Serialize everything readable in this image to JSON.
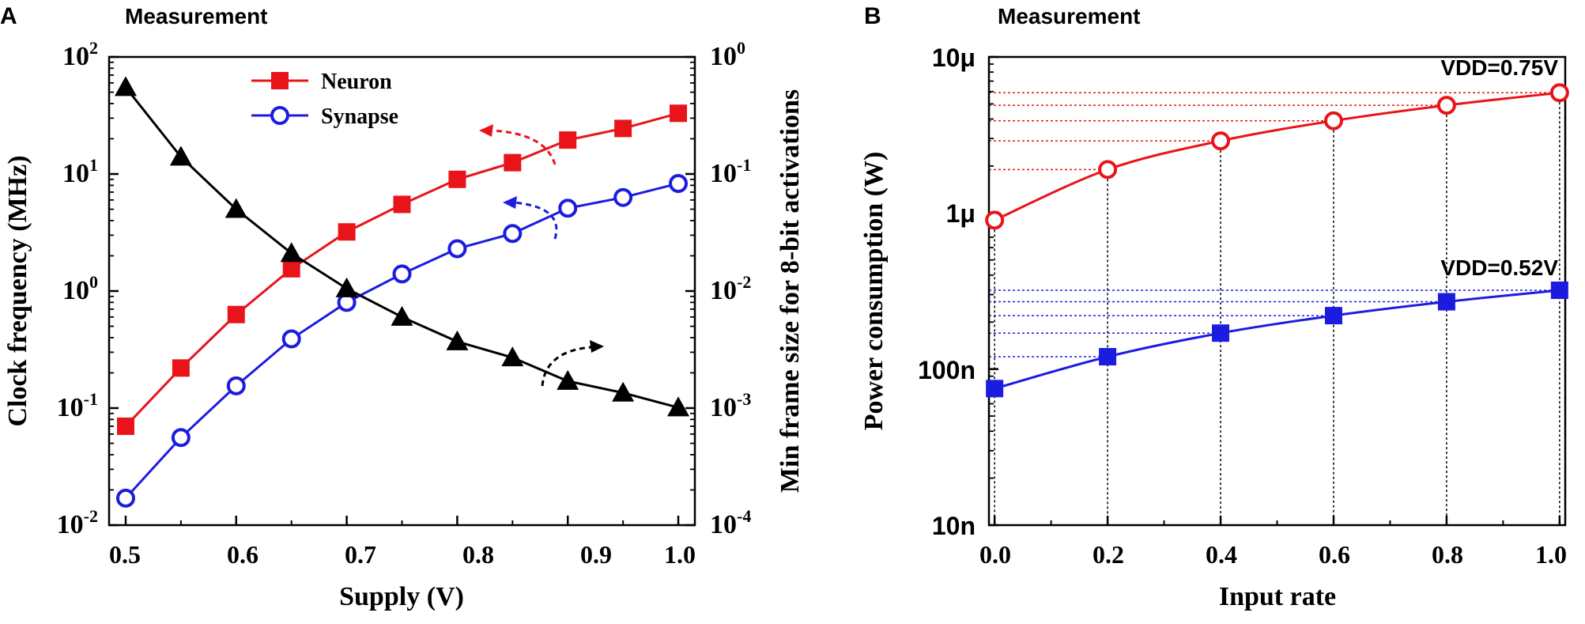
{
  "chart_data": [
    {
      "panel": "A",
      "type": "line",
      "title": "Measurement",
      "xlabel": "Supply (V)",
      "ylabel": "Clock frequency (MHz)",
      "y2label": "Min frame size for 8-bit activations",
      "xlim": [
        0.485,
        1.015
      ],
      "ylim_log10": [
        -2,
        2
      ],
      "y2lim_log10": [
        -4,
        0
      ],
      "y_scale": "log",
      "x_ticks": [
        0.5,
        0.6,
        0.7,
        0.8,
        0.9,
        1.0
      ],
      "x_tick_labels": [
        "0.5",
        "0.6",
        "0.7",
        "0.8",
        "0.9",
        "1.0"
      ],
      "y_tick_bases": [
        "10",
        "10",
        "10",
        "10",
        "10"
      ],
      "y_tick_exps": [
        "-2",
        "-1",
        "0",
        "1",
        "2"
      ],
      "y2_tick_bases": [
        "10",
        "10",
        "10",
        "10",
        "10"
      ],
      "y2_tick_exps": [
        "-4",
        "-3",
        "-2",
        "-1",
        "0"
      ],
      "legend_position": "top-left",
      "series": [
        {
          "name": "Neuron",
          "axis": "left",
          "color": "#e8141a",
          "marker": "square-filled",
          "x": [
            0.5,
            0.55,
            0.6,
            0.65,
            0.7,
            0.75,
            0.8,
            0.85,
            0.9,
            0.95,
            1.0
          ],
          "values": [
            0.07,
            0.22,
            0.63,
            1.55,
            3.2,
            5.5,
            9.0,
            12.5,
            19.5,
            24.5,
            33.0
          ]
        },
        {
          "name": "Synapse",
          "axis": "left",
          "color": "#1c1ce0",
          "marker": "circle-open",
          "x": [
            0.5,
            0.55,
            0.6,
            0.65,
            0.7,
            0.75,
            0.8,
            0.85,
            0.9,
            0.95,
            1.0
          ],
          "values": [
            0.017,
            0.056,
            0.155,
            0.39,
            0.8,
            1.4,
            2.3,
            3.1,
            5.1,
            6.3,
            8.3
          ]
        },
        {
          "name": "Min frame size",
          "axis": "right",
          "color": "#000000",
          "marker": "triangle-filled",
          "x": [
            0.5,
            0.55,
            0.6,
            0.65,
            0.7,
            0.75,
            0.8,
            0.85,
            0.9,
            0.95,
            1.0
          ],
          "values": [
            0.55,
            0.14,
            0.05,
            0.021,
            0.0105,
            0.006,
            0.0037,
            0.0027,
            0.0017,
            0.00135,
            0.00101
          ]
        }
      ]
    },
    {
      "panel": "B",
      "type": "line",
      "title": "Measurement",
      "xlabel": "Input rate",
      "ylabel": "Power consumption (W)",
      "xlim": [
        -0.01,
        1.01
      ],
      "ylim": [
        "10n",
        "10μ"
      ],
      "y_scale": "log",
      "x_ticks": [
        0.0,
        0.2,
        0.4,
        0.6,
        0.8,
        1.0
      ],
      "x_tick_labels": [
        "0.0",
        "0.2",
        "0.4",
        "0.6",
        "0.8",
        "1.0"
      ],
      "y_ticks_W": [
        1e-08,
        1e-07,
        1e-06,
        1e-05
      ],
      "y_tick_labels": [
        "10n",
        "100n",
        "1μ",
        "10μ"
      ],
      "series": [
        {
          "name": "VDD=0.75V",
          "color": "#e8141a",
          "marker": "circle-open",
          "x": [
            0.0,
            0.2,
            0.4,
            0.6,
            0.8,
            1.0
          ],
          "values_W": [
            9e-07,
            1.9e-06,
            2.9e-06,
            3.9e-06,
            4.9e-06,
            5.9e-06
          ]
        },
        {
          "name": "VDD=0.52V",
          "color": "#1c1ce0",
          "marker": "square-filled",
          "x": [
            0.0,
            0.2,
            0.4,
            0.6,
            0.8,
            1.0
          ],
          "values_W": [
            7.5e-08,
            1.2e-07,
            1.7e-07,
            2.2e-07,
            2.7e-07,
            3.2e-07
          ]
        }
      ]
    }
  ],
  "panel_labels": [
    "A",
    "B"
  ]
}
